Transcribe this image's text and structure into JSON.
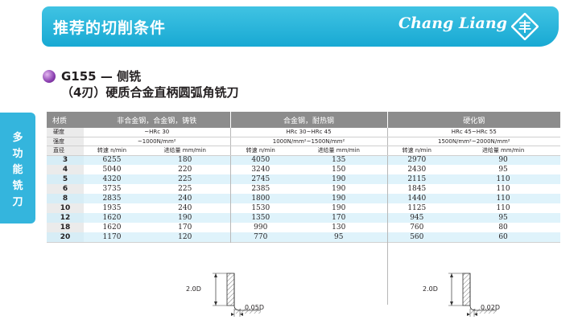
{
  "banner": {
    "title": "推荐的切削条件",
    "brand": "Chang Liang",
    "logo_glyph": "丰",
    "accent_color": "#1aaad4"
  },
  "product": {
    "model": "G155 — 侧铣",
    "subtitle": "（4刃）硬质合金直柄圆弧角铣刀"
  },
  "side_tab": [
    "多",
    "功",
    "能",
    "铣",
    "刀"
  ],
  "table": {
    "material_label": "材质",
    "materials": [
      "非合金钢，合金钢，铸铁",
      "合金钢，耐热钢",
      "硬化钢"
    ],
    "hardness_label": "硬度",
    "hardness": [
      "~HRc 30",
      "HRc 30~HRc 45",
      "HRc 45~HRc 55"
    ],
    "strength_label": "强度",
    "strength": [
      "~1000N/mm²",
      "1000N/mm²~1500N/mm²",
      "1500N/mm²~2000N/mm²"
    ],
    "diameter_label": "直径",
    "speed_label": "转速 n/min",
    "feed_label": "进给量 mm/min",
    "rows": [
      {
        "d": "3",
        "v": [
          "6255",
          "180",
          "4050",
          "135",
          "2970",
          "90"
        ]
      },
      {
        "d": "4",
        "v": [
          "5040",
          "220",
          "3240",
          "150",
          "2430",
          "95"
        ]
      },
      {
        "d": "5",
        "v": [
          "4320",
          "225",
          "2745",
          "190",
          "2115",
          "110"
        ]
      },
      {
        "d": "6",
        "v": [
          "3735",
          "225",
          "2385",
          "190",
          "1845",
          "110"
        ]
      },
      {
        "d": "8",
        "v": [
          "2835",
          "240",
          "1800",
          "190",
          "1440",
          "110"
        ]
      },
      {
        "d": "10",
        "v": [
          "1935",
          "240",
          "1530",
          "190",
          "1125",
          "110"
        ]
      },
      {
        "d": "12",
        "v": [
          "1620",
          "190",
          "1350",
          "170",
          "945",
          "95"
        ]
      },
      {
        "d": "18",
        "v": [
          "1620",
          "170",
          "990",
          "130",
          "760",
          "80"
        ]
      },
      {
        "d": "20",
        "v": [
          "1170",
          "120",
          "770",
          "95",
          "560",
          "60"
        ]
      }
    ]
  },
  "diagrams": [
    {
      "depth": "2.0D",
      "width": "0.05D"
    },
    {
      "depth": "2.0D",
      "width": "0.02D"
    }
  ]
}
